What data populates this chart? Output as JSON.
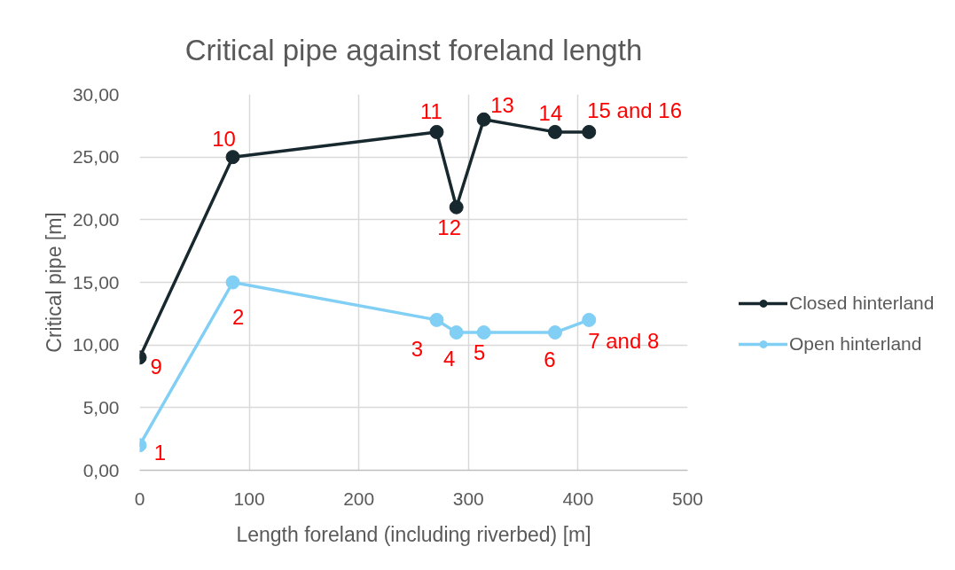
{
  "chart_data": {
    "type": "line",
    "title": "Critical pipe against foreland length",
    "xlabel": "Length foreland (including riverbed) [m]",
    "ylabel": "Critical pipe [m]",
    "series": [
      {
        "name": "Closed hinterland",
        "color": "#17282e",
        "x": [
          0,
          85,
          271,
          289,
          314,
          379,
          410
        ],
        "values": [
          9,
          25,
          27,
          21,
          28,
          27,
          27
        ]
      },
      {
        "name": "Open hinterland",
        "color": "#81cff5",
        "x": [
          0,
          85,
          271,
          289,
          314,
          379,
          410
        ],
        "values": [
          2,
          15,
          12,
          11,
          11,
          11,
          12
        ]
      }
    ],
    "xlim": [
      0,
      500
    ],
    "xticks": [
      0,
      100,
      200,
      300,
      400,
      500
    ],
    "ylim": [
      0,
      30
    ],
    "yticks": [
      {
        "value": 0,
        "label": "0,00"
      },
      {
        "value": 5,
        "label": "5,00"
      },
      {
        "value": 10,
        "label": "10,00"
      },
      {
        "value": 15,
        "label": "15,00"
      },
      {
        "value": 20,
        "label": "20,00"
      },
      {
        "value": 25,
        "label": "25,00"
      },
      {
        "value": 30,
        "label": "30,00"
      }
    ],
    "grid": true,
    "legend": "right",
    "marker": "circle",
    "line_style": "solid",
    "annotations": [
      {
        "text": "1",
        "x": 0,
        "y": 2
      },
      {
        "text": "2",
        "x": 85,
        "y": 15
      },
      {
        "text": "3",
        "x": 271,
        "y": 12
      },
      {
        "text": "4",
        "x": 289,
        "y": 11
      },
      {
        "text": "5",
        "x": 314,
        "y": 11
      },
      {
        "text": "6",
        "x": 379,
        "y": 11
      },
      {
        "text": "7 and 8",
        "x": 410,
        "y": 12
      },
      {
        "text": "9",
        "x": 0,
        "y": 9
      },
      {
        "text": "10",
        "x": 85,
        "y": 25
      },
      {
        "text": "11",
        "x": 271,
        "y": 27
      },
      {
        "text": "12",
        "x": 289,
        "y": 21
      },
      {
        "text": "13",
        "x": 314,
        "y": 28
      },
      {
        "text": "14",
        "x": 379,
        "y": 27
      },
      {
        "text": "15 and 16",
        "x": 410,
        "y": 27
      }
    ]
  }
}
